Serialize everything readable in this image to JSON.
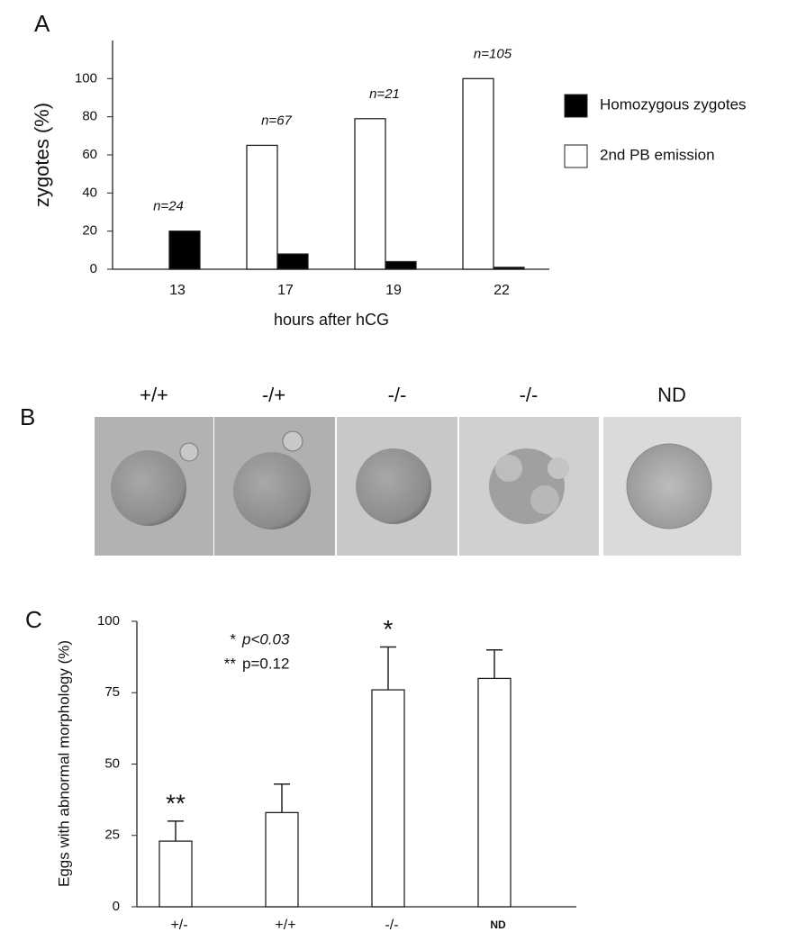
{
  "panel_labels": [
    "A",
    "B",
    "C"
  ],
  "chart_data": [
    {
      "type": "bar",
      "categories": [
        "13",
        "17",
        "19",
        "22"
      ],
      "series": [
        {
          "name": "Homozygous zygotes",
          "color": "#000000",
          "values": [
            20,
            8,
            4,
            1
          ]
        },
        {
          "name": "2nd PB emission",
          "color": "#ffffff",
          "values": [
            null,
            65,
            79,
            100
          ]
        }
      ],
      "n_labels": [
        "n=24",
        "n=67",
        "n=21",
        "n=105"
      ],
      "y_label": "zygotes (%)",
      "x_label": "hours after hCG",
      "ylim": [
        0,
        120
      ],
      "yticks": [
        0,
        20,
        40,
        60,
        80,
        100
      ],
      "legend": "right"
    },
    {
      "type": "bar",
      "categories": [
        "+/-",
        "+/+",
        "-/-",
        "ND"
      ],
      "values": [
        23,
        33,
        76,
        80
      ],
      "errors": [
        7,
        10,
        15,
        10
      ],
      "color": "#ffffff",
      "bar_labels": [
        "**",
        null,
        "*",
        null
      ],
      "notes": [
        {
          "stars": "*",
          "text": "p<0.03"
        },
        {
          "stars": "**",
          "text": "p=0.12"
        }
      ],
      "y_label": "Eggs with abnormal morphology (%)",
      "ylim": [
        0,
        100
      ],
      "yticks": [
        0,
        25,
        50,
        75,
        100
      ]
    }
  ],
  "images": {
    "labels": [
      "+/+",
      "-/+",
      "-/-",
      "-/-",
      "ND"
    ]
  }
}
